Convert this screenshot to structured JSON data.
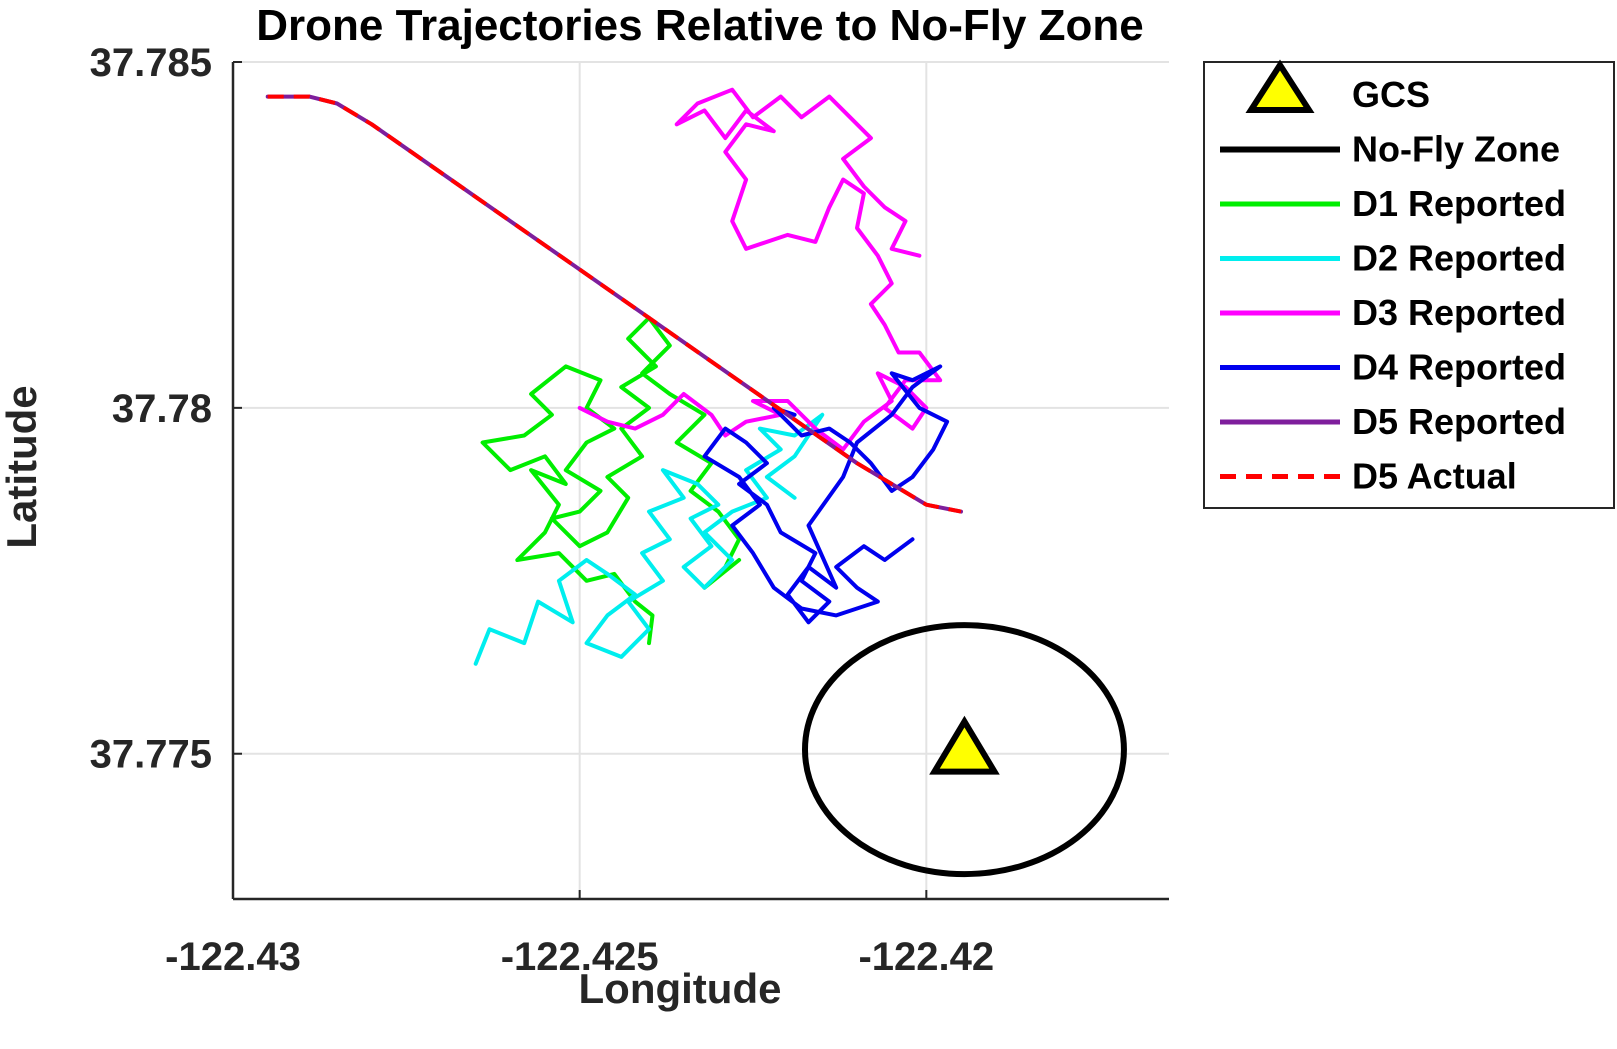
{
  "chart_data": {
    "type": "line",
    "title": "Drone Trajectories Relative to No-Fly Zone",
    "xlabel": "Longitude",
    "ylabel": "Latitude",
    "xlim": [
      -122.43,
      -122.4165
    ],
    "ylim": [
      37.7729,
      37.785
    ],
    "xticks": [
      -122.43,
      -122.425,
      -122.42
    ],
    "xtick_labels": [
      "-122.43",
      "-122.425",
      "-122.42"
    ],
    "yticks": [
      37.775,
      37.78,
      37.785
    ],
    "ytick_labels": [
      "37.775",
      "37.78",
      "37.785"
    ],
    "grid": true,
    "legend_position": "outside-right",
    "gcs": {
      "name": "GCS",
      "lon": -122.41945,
      "lat": 37.77506,
      "fill_color": "#ffff00",
      "edge_color": "#000000"
    },
    "no_fly_zone": {
      "name": "No-Fly Zone",
      "center_lon": -122.41945,
      "center_lat": 37.77506,
      "radius_lon": 0.0023,
      "radius_lat": 0.0018,
      "color": "#000000"
    },
    "series": [
      {
        "name": "D1 Reported",
        "color": "#00ee00",
        "dashed": false,
        "points": [
          [
            -122.424,
            37.7766
          ],
          [
            -122.42395,
            37.777
          ],
          [
            -122.4242,
            37.7772
          ],
          [
            -122.4245,
            37.7776
          ],
          [
            -122.4249,
            37.7775
          ],
          [
            -122.4253,
            37.7779
          ],
          [
            -122.4259,
            37.7778
          ],
          [
            -122.4255,
            37.7782
          ],
          [
            -122.4253,
            37.7786
          ],
          [
            -122.4257,
            37.7791
          ],
          [
            -122.4252,
            37.7789
          ],
          [
            -122.4255,
            37.7793
          ],
          [
            -122.426,
            37.7791
          ],
          [
            -122.4264,
            37.7795
          ],
          [
            -122.4258,
            37.7796
          ],
          [
            -122.4254,
            37.7799
          ],
          [
            -122.4257,
            37.7802
          ],
          [
            -122.4252,
            37.7806
          ],
          [
            -122.4247,
            37.7804
          ],
          [
            -122.4249,
            37.78
          ],
          [
            -122.4245,
            37.7797
          ],
          [
            -122.4249,
            37.7795
          ],
          [
            -122.4252,
            37.7791
          ],
          [
            -122.4247,
            37.7788
          ],
          [
            -122.425,
            37.7785
          ],
          [
            -122.4254,
            37.7784
          ],
          [
            -122.425,
            37.778
          ],
          [
            -122.4246,
            37.7782
          ],
          [
            -122.4243,
            37.7787
          ],
          [
            -122.4246,
            37.779
          ],
          [
            -122.4241,
            37.7793
          ],
          [
            -122.4244,
            37.7797
          ],
          [
            -122.424,
            37.78
          ],
          [
            -122.4244,
            37.7803
          ],
          [
            -122.4239,
            37.7806
          ],
          [
            -122.4243,
            37.781
          ],
          [
            -122.424,
            37.7813
          ],
          [
            -122.4237,
            37.7809
          ],
          [
            -122.4241,
            37.7805
          ],
          [
            -122.4237,
            37.7802
          ],
          [
            -122.4232,
            37.7799
          ],
          [
            -122.4236,
            37.7795
          ],
          [
            -122.4231,
            37.7792
          ],
          [
            -122.4234,
            37.7788
          ],
          [
            -122.423,
            37.7785
          ],
          [
            -122.4227,
            37.7781
          ],
          [
            -122.4229,
            37.7777
          ],
          [
            -122.4232,
            37.7774
          ],
          [
            -122.4227,
            37.7778
          ]
        ]
      },
      {
        "name": "D2 Reported",
        "color": "#00eeee",
        "dashed": false,
        "points": [
          [
            -122.4265,
            37.7763
          ],
          [
            -122.4263,
            37.7768
          ],
          [
            -122.4258,
            37.7766
          ],
          [
            -122.4256,
            37.7772
          ],
          [
            -122.4251,
            37.7769
          ],
          [
            -122.4253,
            37.7775
          ],
          [
            -122.4249,
            37.7778
          ],
          [
            -122.4246,
            37.7776
          ],
          [
            -122.4242,
            37.7773
          ],
          [
            -122.4246,
            37.777
          ],
          [
            -122.4249,
            37.7766
          ],
          [
            -122.4244,
            37.7764
          ],
          [
            -122.424,
            37.7768
          ],
          [
            -122.4243,
            37.7772
          ],
          [
            -122.4238,
            37.7775
          ],
          [
            -122.4241,
            37.7779
          ],
          [
            -122.4237,
            37.7781
          ],
          [
            -122.424,
            37.7785
          ],
          [
            -122.4235,
            37.7787
          ],
          [
            -122.4238,
            37.7791
          ],
          [
            -122.4233,
            37.7789
          ],
          [
            -122.423,
            37.7786
          ],
          [
            -122.4234,
            37.7784
          ],
          [
            -122.4231,
            37.778
          ],
          [
            -122.4235,
            37.7777
          ],
          [
            -122.4232,
            37.7774
          ],
          [
            -122.4228,
            37.7778
          ],
          [
            -122.4232,
            37.7782
          ],
          [
            -122.4228,
            37.7785
          ],
          [
            -122.4223,
            37.7787
          ],
          [
            -122.4226,
            37.7791
          ],
          [
            -122.4221,
            37.7794
          ],
          [
            -122.4224,
            37.7797
          ],
          [
            -122.4219,
            37.7796
          ],
          [
            -122.4215,
            37.7799
          ],
          [
            -122.4219,
            37.7793
          ],
          [
            -122.4223,
            37.779
          ],
          [
            -122.4219,
            37.7787
          ]
        ]
      },
      {
        "name": "D3 Reported",
        "color": "#ff00ff",
        "dashed": false,
        "points": [
          [
            -122.425,
            37.78
          ],
          [
            -122.4246,
            37.7798
          ],
          [
            -122.4242,
            37.7797
          ],
          [
            -122.4238,
            37.7799
          ],
          [
            -122.4235,
            37.7802
          ],
          [
            -122.4231,
            37.7799
          ],
          [
            -122.4229,
            37.7796
          ],
          [
            -122.4226,
            37.7798
          ],
          [
            -122.4221,
            37.7799
          ],
          [
            -122.4225,
            37.7801
          ],
          [
            -122.422,
            37.7801
          ],
          [
            -122.4216,
            37.7797
          ],
          [
            -122.4212,
            37.7794
          ],
          [
            -122.4209,
            37.7798
          ],
          [
            -122.4205,
            37.7801
          ],
          [
            -122.4207,
            37.7805
          ],
          [
            -122.4203,
            37.7803
          ],
          [
            -122.42,
            37.78
          ],
          [
            -122.4202,
            37.7797
          ],
          [
            -122.4206,
            37.78
          ],
          [
            -122.4203,
            37.7804
          ],
          [
            -122.4198,
            37.7804
          ],
          [
            -122.4201,
            37.7808
          ],
          [
            -122.4204,
            37.7808
          ],
          [
            -122.4206,
            37.7812
          ],
          [
            -122.4208,
            37.7815
          ],
          [
            -122.4205,
            37.7818
          ],
          [
            -122.4207,
            37.7822
          ],
          [
            -122.421,
            37.7826
          ],
          [
            -122.4209,
            37.7831
          ],
          [
            -122.4212,
            37.7833
          ],
          [
            -122.4214,
            37.7829
          ],
          [
            -122.4216,
            37.7824
          ],
          [
            -122.422,
            37.7825
          ],
          [
            -122.4226,
            37.7823
          ],
          [
            -122.4228,
            37.7827
          ],
          [
            -122.4226,
            37.7833
          ],
          [
            -122.4229,
            37.7837
          ],
          [
            -122.4226,
            37.7841
          ],
          [
            -122.4222,
            37.784
          ],
          [
            -122.4226,
            37.7843
          ],
          [
            -122.4229,
            37.7839
          ],
          [
            -122.4232,
            37.7843
          ],
          [
            -122.4236,
            37.7841
          ],
          [
            -122.4233,
            37.7844
          ],
          [
            -122.4228,
            37.7846
          ],
          [
            -122.4225,
            37.7842
          ],
          [
            -122.4221,
            37.7845
          ],
          [
            -122.4218,
            37.7842
          ],
          [
            -122.4214,
            37.7845
          ],
          [
            -122.4211,
            37.7842
          ],
          [
            -122.4208,
            37.7839
          ],
          [
            -122.4212,
            37.7836
          ],
          [
            -122.4209,
            37.7832
          ],
          [
            -122.4206,
            37.7829
          ],
          [
            -122.4203,
            37.7827
          ],
          [
            -122.4205,
            37.7823
          ],
          [
            -122.4201,
            37.7822
          ]
        ]
      },
      {
        "name": "D4 Reported",
        "color": "#0000ee",
        "dashed": false,
        "points": [
          [
            -122.4202,
            37.7781
          ],
          [
            -122.4206,
            37.7778
          ],
          [
            -122.4209,
            37.778
          ],
          [
            -122.4213,
            37.7777
          ],
          [
            -122.421,
            37.7774
          ],
          [
            -122.4207,
            37.7772
          ],
          [
            -122.4213,
            37.777
          ],
          [
            -122.4218,
            37.7771
          ],
          [
            -122.4222,
            37.7774
          ],
          [
            -122.4225,
            37.7779
          ],
          [
            -122.4228,
            37.7783
          ],
          [
            -122.4224,
            37.7786
          ],
          [
            -122.4227,
            37.779
          ],
          [
            -122.4232,
            37.7793
          ],
          [
            -122.4229,
            37.7797
          ],
          [
            -122.4226,
            37.7795
          ],
          [
            -122.4223,
            37.7792
          ],
          [
            -122.4227,
            37.7789
          ],
          [
            -122.4223,
            37.7786
          ],
          [
            -122.4221,
            37.7782
          ],
          [
            -122.4216,
            37.7779
          ],
          [
            -122.4218,
            37.7775
          ],
          [
            -122.4214,
            37.7772
          ],
          [
            -122.4217,
            37.7769
          ],
          [
            -122.422,
            37.7773
          ],
          [
            -122.4217,
            37.7777
          ],
          [
            -122.4213,
            37.7774
          ],
          [
            -122.4217,
            37.7783
          ],
          [
            -122.4212,
            37.779
          ],
          [
            -122.421,
            37.7795
          ],
          [
            -122.4205,
            37.7799
          ],
          [
            -122.4202,
            37.7803
          ],
          [
            -122.4198,
            37.7806
          ],
          [
            -122.4202,
            37.7804
          ],
          [
            -122.4205,
            37.7805
          ],
          [
            -122.4201,
            37.78
          ],
          [
            -122.4197,
            37.7798
          ],
          [
            -122.4199,
            37.7794
          ],
          [
            -122.4202,
            37.779
          ],
          [
            -122.4205,
            37.7788
          ],
          [
            -122.4208,
            37.7792
          ],
          [
            -122.4211,
            37.7795
          ],
          [
            -122.4214,
            37.7797
          ],
          [
            -122.4218,
            37.7796
          ],
          [
            -122.4222,
            37.78
          ],
          [
            -122.4219,
            37.7799
          ]
        ]
      },
      {
        "name": "D5 Reported",
        "color": "#7e1e9c",
        "dashed": false,
        "points": [
          [
            -122.4295,
            37.7845
          ],
          [
            -122.4289,
            37.7845
          ],
          [
            -122.4285,
            37.7844
          ],
          [
            -122.428,
            37.7841
          ],
          [
            -122.427,
            37.7834
          ],
          [
            -122.426,
            37.7827
          ],
          [
            -122.425,
            37.782
          ],
          [
            -122.424,
            37.7813
          ],
          [
            -122.423,
            37.7806
          ],
          [
            -122.422,
            37.7799
          ],
          [
            -122.421,
            37.7792
          ],
          [
            -122.42,
            37.7786
          ],
          [
            -122.4195,
            37.7785
          ]
        ]
      },
      {
        "name": "D5 Actual",
        "color": "#ff0000",
        "dashed": true,
        "points": [
          [
            -122.4295,
            37.7845
          ],
          [
            -122.4289,
            37.7845
          ],
          [
            -122.4285,
            37.7844
          ],
          [
            -122.428,
            37.7841
          ],
          [
            -122.427,
            37.7834
          ],
          [
            -122.426,
            37.7827
          ],
          [
            -122.425,
            37.782
          ],
          [
            -122.424,
            37.7813
          ],
          [
            -122.423,
            37.7806
          ],
          [
            -122.422,
            37.7799
          ],
          [
            -122.421,
            37.7792
          ],
          [
            -122.42,
            37.7786
          ],
          [
            -122.4195,
            37.7785
          ]
        ]
      }
    ]
  }
}
